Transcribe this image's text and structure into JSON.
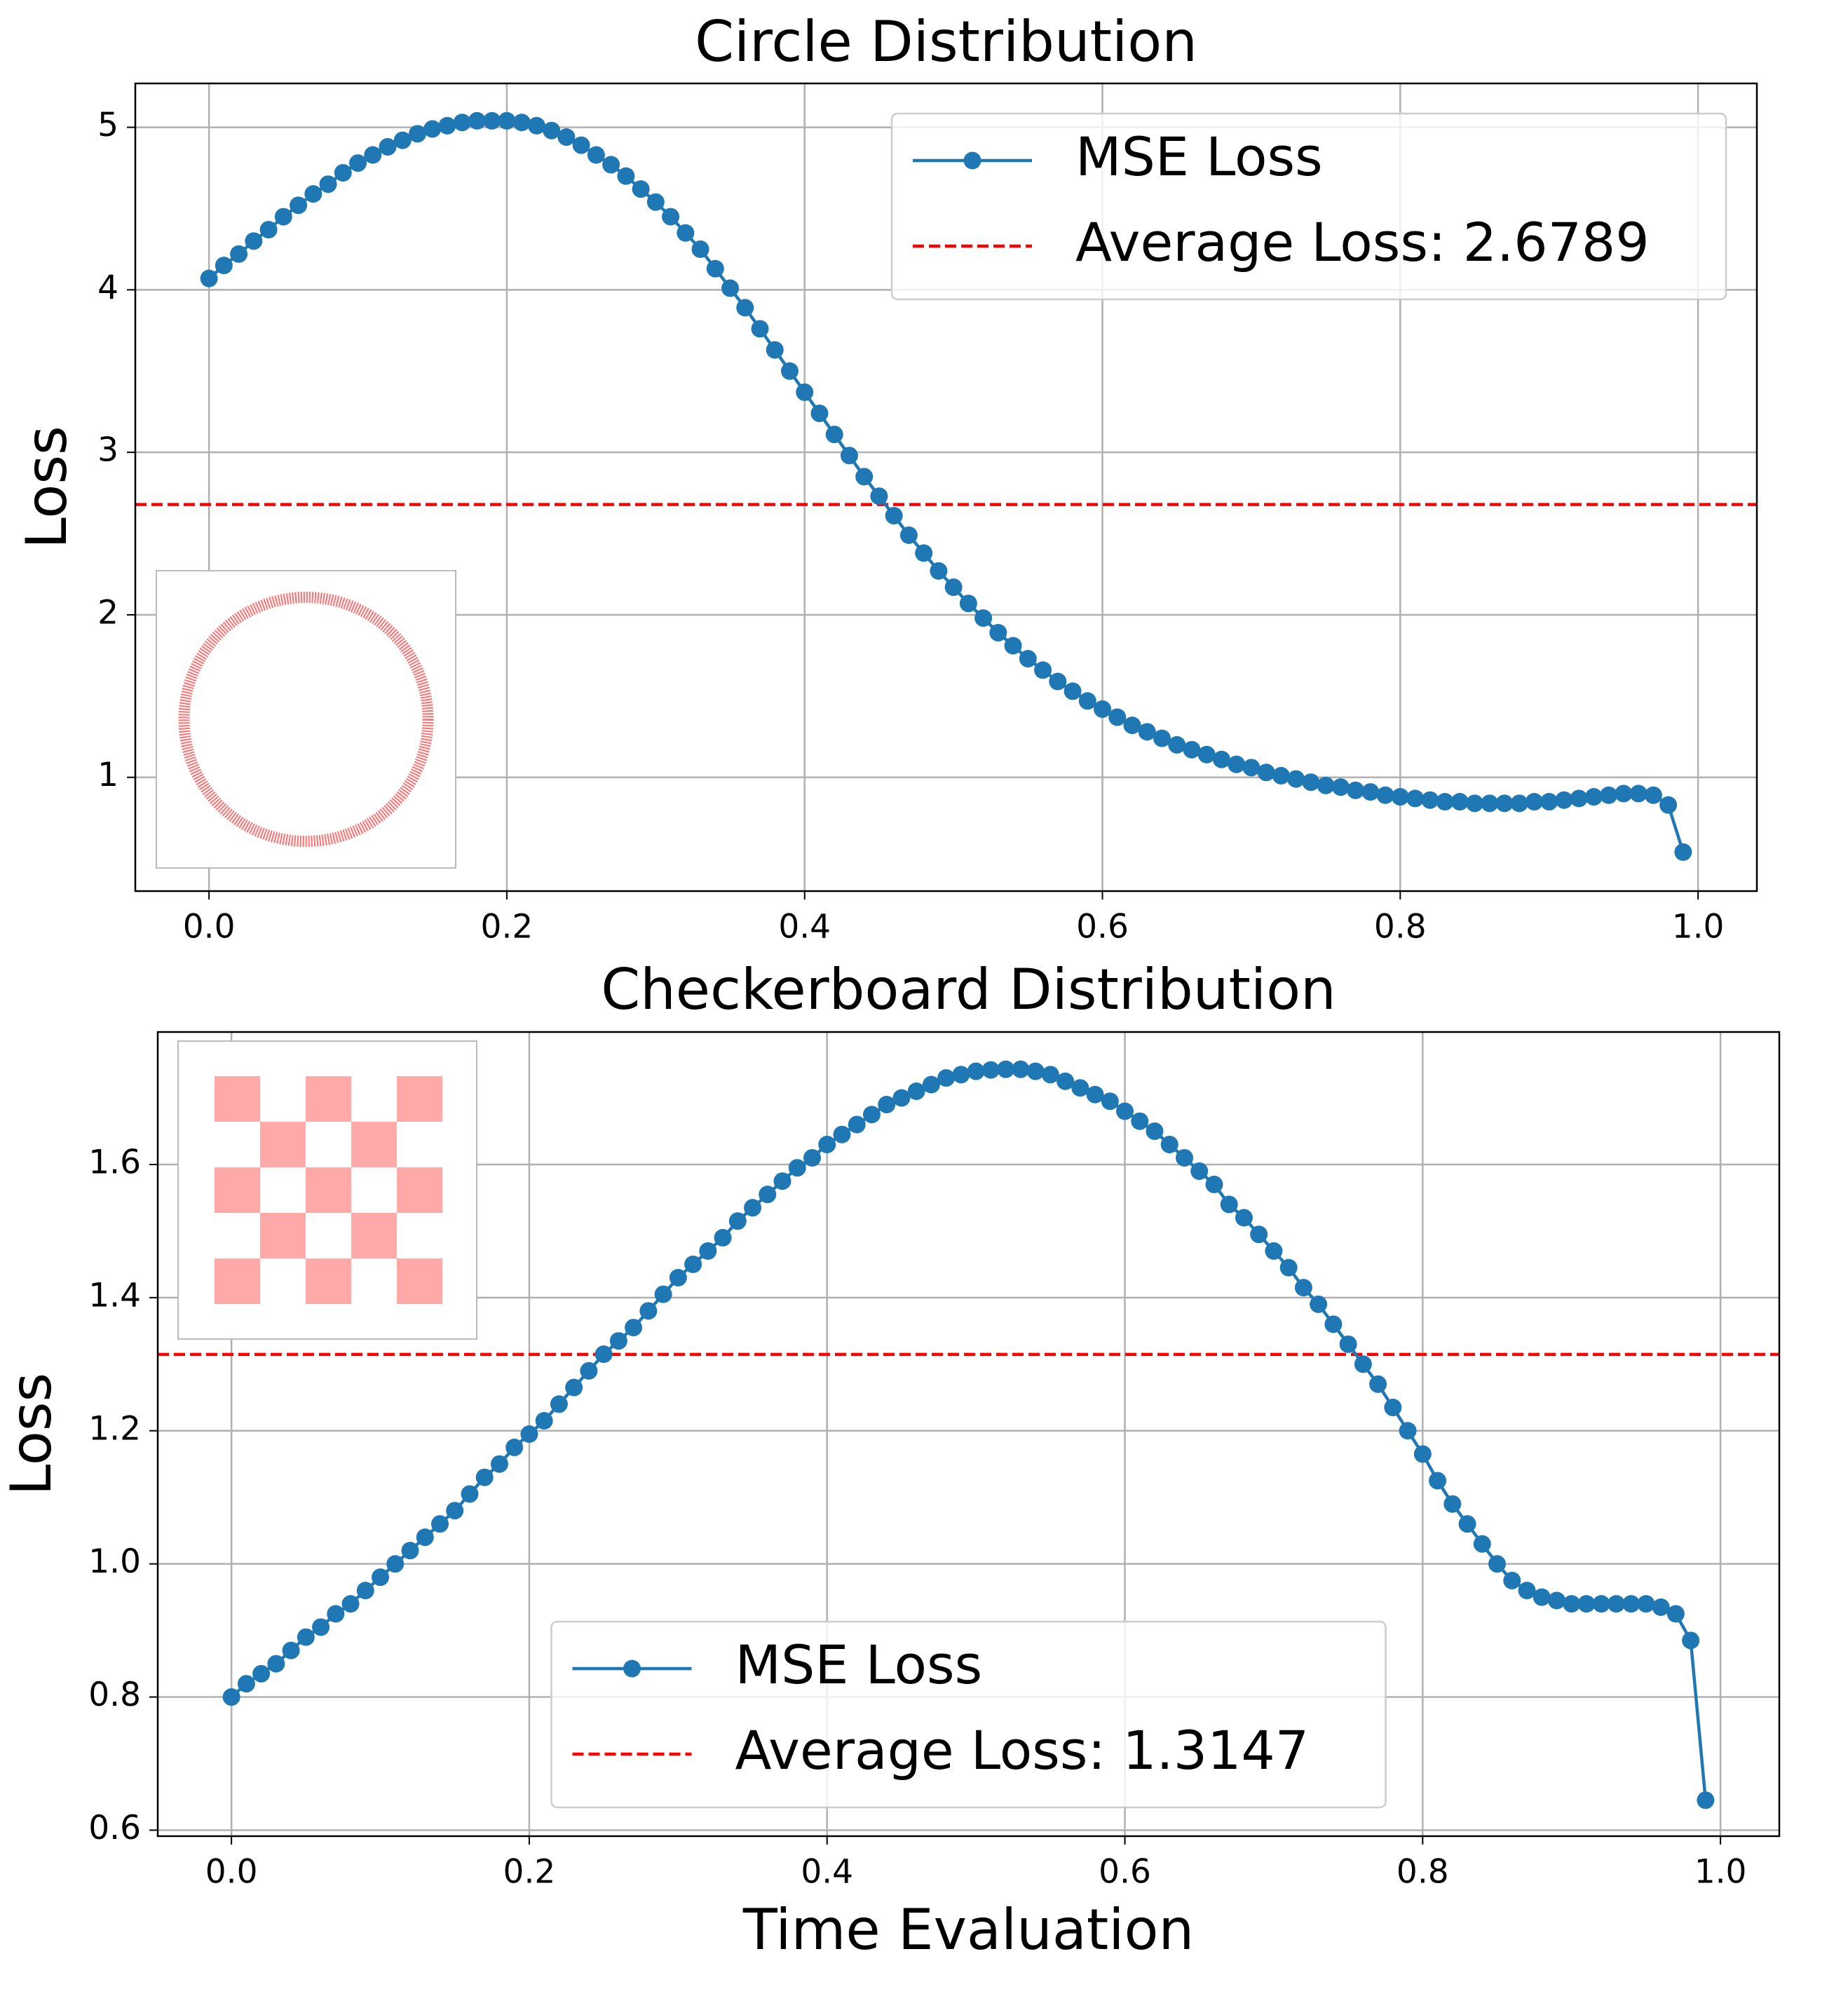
{
  "chart_data": [
    {
      "type": "line",
      "title": "Circle Distribution",
      "ylabel": "Loss",
      "x": [
        0,
        0.01,
        0.02,
        0.03,
        0.04,
        0.05,
        0.06,
        0.07,
        0.08,
        0.09,
        0.1,
        0.11,
        0.12,
        0.13,
        0.14,
        0.15,
        0.16,
        0.17,
        0.18,
        0.19,
        0.2,
        0.21,
        0.22,
        0.23,
        0.24,
        0.25,
        0.26,
        0.27,
        0.28,
        0.29,
        0.3,
        0.31,
        0.32,
        0.33,
        0.34,
        0.35,
        0.36,
        0.37,
        0.38,
        0.39,
        0.4,
        0.41,
        0.42,
        0.43,
        0.44,
        0.45,
        0.46,
        0.47,
        0.48,
        0.49,
        0.5,
        0.51,
        0.52,
        0.53,
        0.54,
        0.55,
        0.56,
        0.57,
        0.58,
        0.59,
        0.6,
        0.61,
        0.62,
        0.63,
        0.64,
        0.65,
        0.66,
        0.67,
        0.68,
        0.69,
        0.7,
        0.71,
        0.72,
        0.73,
        0.74,
        0.75,
        0.76,
        0.77,
        0.78,
        0.79,
        0.8,
        0.81,
        0.82,
        0.83,
        0.84,
        0.85,
        0.86,
        0.87,
        0.88,
        0.89,
        0.9,
        0.91,
        0.92,
        0.93,
        0.94,
        0.95,
        0.96,
        0.97,
        0.98,
        0.99
      ],
      "series": [
        {
          "name": "MSE Loss",
          "color": "#1f77b4",
          "values": [
            4.07,
            4.15,
            4.22,
            4.3,
            4.37,
            4.45,
            4.52,
            4.59,
            4.65,
            4.72,
            4.78,
            4.83,
            4.88,
            4.92,
            4.96,
            4.99,
            5.01,
            5.03,
            5.04,
            5.04,
            5.04,
            5.03,
            5.01,
            4.98,
            4.94,
            4.89,
            4.83,
            4.77,
            4.7,
            4.62,
            4.54,
            4.45,
            4.35,
            4.25,
            4.13,
            4.01,
            3.89,
            3.76,
            3.63,
            3.5,
            3.37,
            3.24,
            3.11,
            2.98,
            2.85,
            2.73,
            2.61,
            2.49,
            2.38,
            2.27,
            2.17,
            2.07,
            1.98,
            1.89,
            1.81,
            1.73,
            1.66,
            1.59,
            1.53,
            1.47,
            1.42,
            1.37,
            1.32,
            1.28,
            1.24,
            1.2,
            1.17,
            1.14,
            1.11,
            1.08,
            1.06,
            1.03,
            1.01,
            0.99,
            0.97,
            0.95,
            0.94,
            0.92,
            0.91,
            0.89,
            0.88,
            0.87,
            0.86,
            0.85,
            0.85,
            0.84,
            0.84,
            0.84,
            0.84,
            0.85,
            0.85,
            0.86,
            0.87,
            0.88,
            0.89,
            0.9,
            0.9,
            0.89,
            0.83,
            0.54
          ]
        }
      ],
      "hline": {
        "name": "Average Loss: 2.6789",
        "value": 2.6789,
        "color": "#ff0000"
      },
      "xlim": [
        -0.0495,
        1.0395
      ],
      "ylim": [
        0.3,
        5.27
      ],
      "xticks": [
        {
          "value": 0,
          "label": "0.0"
        },
        0.2,
        0.4,
        0.6,
        0.8,
        {
          "value": 1,
          "label": "1.0"
        }
      ],
      "yticks": [
        1,
        2,
        3,
        4,
        5
      ],
      "grid": true,
      "legend": "upper right"
    },
    {
      "type": "line",
      "title": "Checkerboard Distribution",
      "ylabel": "Loss",
      "xlabel": "Time Evaluation",
      "x": [
        0,
        0.01,
        0.02,
        0.03,
        0.04,
        0.05,
        0.06,
        0.07,
        0.08,
        0.09,
        0.1,
        0.11,
        0.12,
        0.13,
        0.14,
        0.15,
        0.16,
        0.17,
        0.18,
        0.19,
        0.2,
        0.21,
        0.22,
        0.23,
        0.24,
        0.25,
        0.26,
        0.27,
        0.28,
        0.29,
        0.3,
        0.31,
        0.32,
        0.33,
        0.34,
        0.35,
        0.36,
        0.37,
        0.38,
        0.39,
        0.4,
        0.41,
        0.42,
        0.43,
        0.44,
        0.45,
        0.46,
        0.47,
        0.48,
        0.49,
        0.5,
        0.51,
        0.52,
        0.53,
        0.54,
        0.55,
        0.56,
        0.57,
        0.58,
        0.59,
        0.6,
        0.61,
        0.62,
        0.63,
        0.64,
        0.65,
        0.66,
        0.67,
        0.68,
        0.69,
        0.7,
        0.71,
        0.72,
        0.73,
        0.74,
        0.75,
        0.76,
        0.77,
        0.78,
        0.79,
        0.8,
        0.81,
        0.82,
        0.83,
        0.84,
        0.85,
        0.86,
        0.87,
        0.88,
        0.89,
        0.9,
        0.91,
        0.92,
        0.93,
        0.94,
        0.95,
        0.96,
        0.97,
        0.98,
        0.99
      ],
      "series": [
        {
          "name": "MSE Loss",
          "color": "#1f77b4",
          "values": [
            0.8,
            0.82,
            0.835,
            0.85,
            0.87,
            0.89,
            0.905,
            0.925,
            0.94,
            0.96,
            0.98,
            1.0,
            1.02,
            1.04,
            1.06,
            1.08,
            1.105,
            1.13,
            1.15,
            1.175,
            1.195,
            1.215,
            1.24,
            1.265,
            1.29,
            1.315,
            1.335,
            1.355,
            1.38,
            1.405,
            1.43,
            1.45,
            1.47,
            1.49,
            1.515,
            1.535,
            1.555,
            1.575,
            1.595,
            1.61,
            1.63,
            1.645,
            1.66,
            1.675,
            1.69,
            1.7,
            1.71,
            1.72,
            1.73,
            1.735,
            1.74,
            1.742,
            1.743,
            1.743,
            1.74,
            1.735,
            1.725,
            1.715,
            1.705,
            1.695,
            1.68,
            1.665,
            1.65,
            1.63,
            1.61,
            1.59,
            1.57,
            1.54,
            1.52,
            1.495,
            1.47,
            1.445,
            1.415,
            1.39,
            1.36,
            1.33,
            1.3,
            1.27,
            1.235,
            1.2,
            1.165,
            1.125,
            1.09,
            1.06,
            1.03,
            1.0,
            0.975,
            0.96,
            0.95,
            0.945,
            0.94,
            0.94,
            0.94,
            0.94,
            0.94,
            0.94,
            0.935,
            0.925,
            0.885,
            0.645
          ]
        }
      ],
      "hline": {
        "name": "Average Loss: 1.3147",
        "value": 1.3147,
        "color": "#ff0000"
      },
      "xlim": [
        -0.0495,
        1.0395
      ],
      "ylim": [
        0.591,
        1.799
      ],
      "xticks": [
        {
          "value": 0,
          "label": "0.0"
        },
        0.2,
        0.4,
        0.6,
        0.8,
        {
          "value": 1,
          "label": "1.0"
        }
      ],
      "yticks": [
        0.6,
        0.8,
        {
          "value": 1,
          "label": "1.0"
        },
        1.2,
        1.4,
        1.6
      ],
      "grid": true,
      "legend": "lower center"
    }
  ]
}
